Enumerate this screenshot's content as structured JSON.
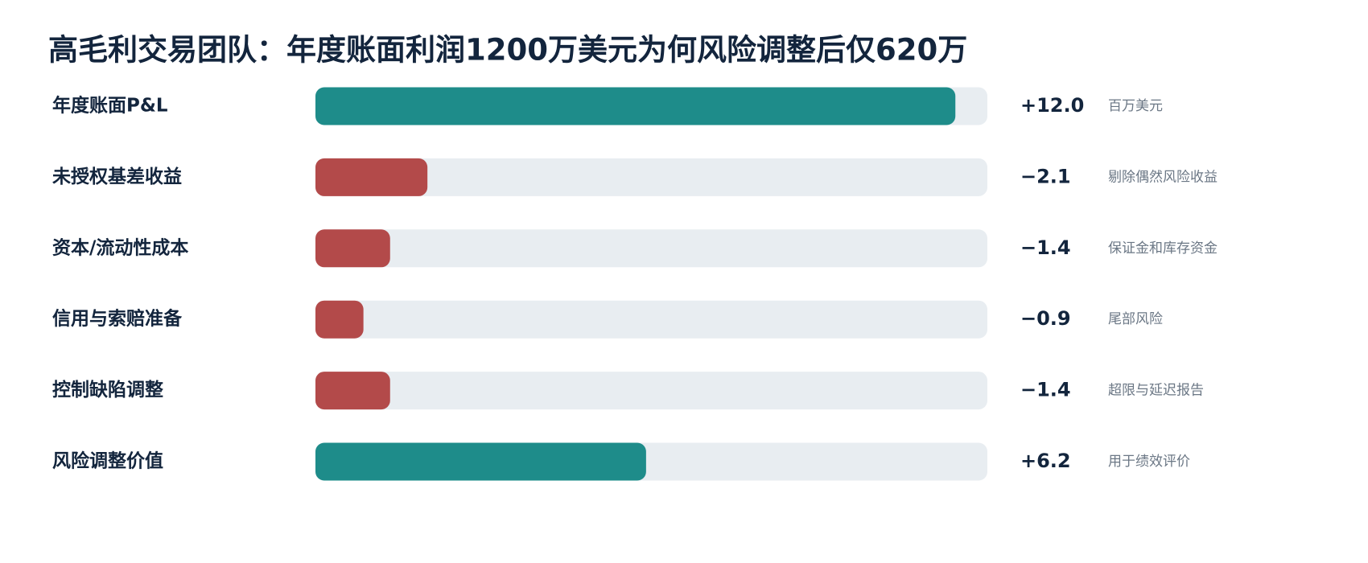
{
  "chart_data": {
    "type": "bar",
    "orientation": "horizontal",
    "title": "高毛利交易团队：年度账面利润1200万美元为何风险调整后仅620万",
    "categories": [
      "年度账面P&L",
      "未授权基差收益",
      "资本/流动性成本",
      "信用与索赔准备",
      "控制缺陷调整",
      "风险调整价值"
    ],
    "values": [
      12.0,
      -2.1,
      -1.4,
      -0.9,
      -1.4,
      6.2
    ],
    "value_labels": [
      "+12.0",
      "−2.1",
      "−1.4",
      "−0.9",
      "−1.4",
      "+6.2"
    ],
    "notes": [
      "百万美元",
      "剔除偶然风险收益",
      "保证金和库存资金",
      "尾部风险",
      "超限与延迟报告",
      "用于绩效评价"
    ],
    "colors": [
      "#1e8c8a",
      "#b34a4a",
      "#b34a4a",
      "#b34a4a",
      "#b34a4a",
      "#1e8c8a"
    ],
    "track_color": "#e8edf1",
    "xlim": [
      0,
      12.6
    ]
  }
}
